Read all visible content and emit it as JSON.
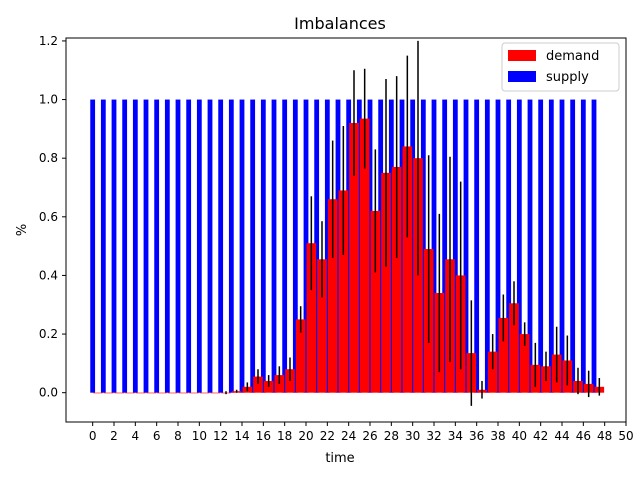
{
  "chart_data": {
    "type": "bar",
    "title": "Imbalances",
    "xlabel": "time",
    "ylabel": "%",
    "xlim": [
      -2.5,
      50
    ],
    "ylim": [
      -0.1,
      1.21
    ],
    "xticks": [
      0,
      2,
      4,
      6,
      8,
      10,
      12,
      14,
      16,
      18,
      20,
      22,
      24,
      26,
      28,
      30,
      32,
      34,
      36,
      38,
      40,
      42,
      44,
      46,
      48,
      50
    ],
    "xtick_labels": [
      "0",
      "2",
      "4",
      "6",
      "8",
      "10",
      "12",
      "14",
      "16",
      "18",
      "20",
      "22",
      "24",
      "26",
      "28",
      "30",
      "32",
      "34",
      "36",
      "38",
      "40",
      "42",
      "44",
      "46",
      "48",
      "50"
    ],
    "yticks": [
      0.0,
      0.2,
      0.4,
      0.6,
      0.8,
      1.0,
      1.2
    ],
    "ytick_labels": [
      "0.0",
      "0.2",
      "0.4",
      "0.6",
      "0.8",
      "1.0",
      "1.2"
    ],
    "legend_position": "top-right",
    "grid": false,
    "x": [
      0,
      1,
      2,
      3,
      4,
      5,
      6,
      7,
      8,
      9,
      10,
      11,
      12,
      13,
      14,
      15,
      16,
      17,
      18,
      19,
      20,
      21,
      22,
      23,
      24,
      25,
      26,
      27,
      28,
      29,
      30,
      31,
      32,
      33,
      34,
      35,
      36,
      37,
      38,
      39,
      40,
      41,
      42,
      43,
      44,
      45,
      46,
      47
    ],
    "series": [
      {
        "name": "demand",
        "color": "#ff0000",
        "values": [
          0,
          0,
          0,
          0,
          0,
          0,
          0,
          0,
          0,
          0,
          0,
          0,
          0,
          0.005,
          0.02,
          0.055,
          0.04,
          0.06,
          0.08,
          0.25,
          0.51,
          0.455,
          0.66,
          0.69,
          0.92,
          0.935,
          0.62,
          0.75,
          0.77,
          0.84,
          0.8,
          0.49,
          0.34,
          0.455,
          0.4,
          0.135,
          0.01,
          0.14,
          0.255,
          0.305,
          0.2,
          0.095,
          0.09,
          0.13,
          0.11,
          0.04,
          0.03,
          0.02
        ],
        "errors": [
          0,
          0,
          0,
          0,
          0,
          0,
          0,
          0,
          0,
          0,
          0,
          0,
          0.005,
          0.005,
          0.015,
          0.025,
          0.02,
          0.03,
          0.04,
          0.045,
          0.16,
          0.13,
          0.2,
          0.22,
          0.18,
          0.17,
          0.21,
          0.32,
          0.31,
          0.31,
          0.4,
          0.32,
          0.27,
          0.35,
          0.32,
          0.18,
          0.03,
          0.06,
          0.08,
          0.075,
          0.04,
          0.075,
          0.05,
          0.095,
          0.085,
          0.045,
          0.045,
          0.03
        ]
      },
      {
        "name": "supply",
        "color": "#0000ff",
        "values": [
          1,
          1,
          1,
          1,
          1,
          1,
          1,
          1,
          1,
          1,
          1,
          1,
          1,
          1,
          1,
          1,
          1,
          1,
          1,
          1,
          1,
          1,
          1,
          1,
          1,
          1,
          1,
          1,
          1,
          1,
          1,
          1,
          1,
          1,
          1,
          1,
          1,
          1,
          1,
          1,
          1,
          1,
          1,
          1,
          1,
          1,
          1,
          1
        ]
      }
    ]
  }
}
